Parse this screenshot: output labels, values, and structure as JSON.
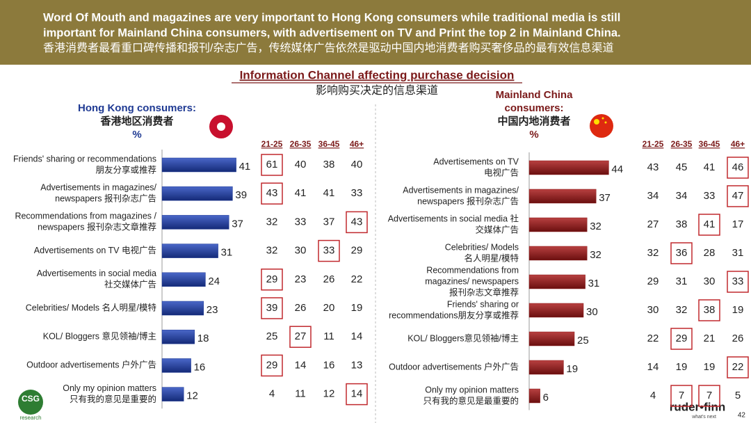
{
  "header": {
    "lines": [
      "Word Of Mouth and magazines are very important to Hong Kong consumers while traditional media is still",
      "important for Mainland China consumers, with advertisement on TV and Print the top 2 in Mainland China.",
      "香港消费者最看重口碑传播和报刊/杂志广告，传统媒体广告依然是驱动中国内地消费者购买奢侈品的最有效信息渠道"
    ]
  },
  "section_title": "Information Channel affecting purchase decision",
  "section_title_cn": "影响购买决定的信息渠道",
  "chart_data": [
    {
      "type": "bar",
      "orientation": "horizontal",
      "title": [
        "Hong Kong consumers:",
        "香港地区消费者",
        "%"
      ],
      "color": "#1f3a93",
      "xlim": [
        0,
        45
      ],
      "categories": [
        [
          "Friends' sharing or recommendations",
          "朋友分享或推荐"
        ],
        [
          "Advertisements in magazines/",
          "newspapers 报刊杂志广告"
        ],
        [
          "Recommendations from magazines /",
          "newspapers 报刊杂志文章推荐"
        ],
        [
          "Advertisements on TV 电视广告"
        ],
        [
          "Advertisements in social media",
          "社交媒体广告"
        ],
        [
          "Celebrities/ Models 名人明星/模特"
        ],
        [
          "KOL/ Bloggers 意见领袖/博主"
        ],
        [
          "Outdoor advertisements 户外广告"
        ],
        [
          "Only my opinion matters",
          "只有我的意见是重要的"
        ]
      ],
      "values": [
        41,
        39,
        37,
        31,
        24,
        23,
        18,
        16,
        12
      ],
      "age_groups": [
        "21-25",
        "26-35",
        "36-45",
        "46+"
      ],
      "age_values": [
        [
          61,
          40,
          38,
          40
        ],
        [
          43,
          41,
          41,
          33
        ],
        [
          32,
          33,
          37,
          43
        ],
        [
          32,
          30,
          33,
          29
        ],
        [
          29,
          23,
          26,
          22
        ],
        [
          39,
          26,
          20,
          19
        ],
        [
          25,
          27,
          11,
          14
        ],
        [
          29,
          14,
          16,
          13
        ],
        [
          4,
          11,
          12,
          14
        ]
      ],
      "highlighted": [
        [
          0,
          0
        ],
        [
          1,
          0
        ],
        [
          2,
          3
        ],
        [
          3,
          2
        ],
        [
          4,
          0
        ],
        [
          5,
          0
        ],
        [
          6,
          1
        ],
        [
          7,
          0
        ],
        [
          8,
          3
        ]
      ]
    },
    {
      "type": "bar",
      "orientation": "horizontal",
      "title": [
        "Mainland China",
        "consumers:",
        "中国内地消费者",
        "%"
      ],
      "color": "#8b1a1a",
      "xlim": [
        0,
        45
      ],
      "categories": [
        [
          "Advertisements on TV",
          "电视广告"
        ],
        [
          "Advertisements in magazines/",
          "newspapers 报刊杂志广告"
        ],
        [
          "Advertisements in social media 社",
          "交媒体广告"
        ],
        [
          "Celebrities/ Models",
          "名人明星/模特"
        ],
        [
          "Recommendations from",
          "magazines/ newspapers",
          "报刊杂志文章推荐"
        ],
        [
          "Friends' sharing or",
          "recommendations朋友分享或推荐"
        ],
        [
          "KOL/ Bloggers意见领袖/博主"
        ],
        [
          "Outdoor advertisements 户外广告"
        ],
        [
          "Only my opinion matters",
          "只有我的意见是最重要的"
        ]
      ],
      "values": [
        44,
        37,
        32,
        32,
        31,
        30,
        25,
        19,
        6
      ],
      "age_groups": [
        "21-25",
        "26-35",
        "36-45",
        "46+"
      ],
      "age_values": [
        [
          43,
          45,
          41,
          46
        ],
        [
          34,
          34,
          33,
          47
        ],
        [
          27,
          38,
          41,
          17
        ],
        [
          32,
          36,
          28,
          31
        ],
        [
          29,
          31,
          30,
          33
        ],
        [
          30,
          32,
          38,
          19
        ],
        [
          22,
          29,
          21,
          26
        ],
        [
          14,
          19,
          19,
          22
        ],
        [
          4,
          7,
          7,
          5
        ]
      ],
      "highlighted": [
        [
          0,
          3
        ],
        [
          1,
          3
        ],
        [
          2,
          2
        ],
        [
          3,
          1
        ],
        [
          4,
          3
        ],
        [
          5,
          2
        ],
        [
          6,
          1
        ],
        [
          7,
          3
        ],
        [
          8,
          1
        ],
        [
          8,
          2
        ]
      ]
    }
  ],
  "footer": {
    "logo": "CSG",
    "logo_sub": "research",
    "brand": "ruder•finn",
    "tagline": "what's next",
    "page_number": "42"
  }
}
